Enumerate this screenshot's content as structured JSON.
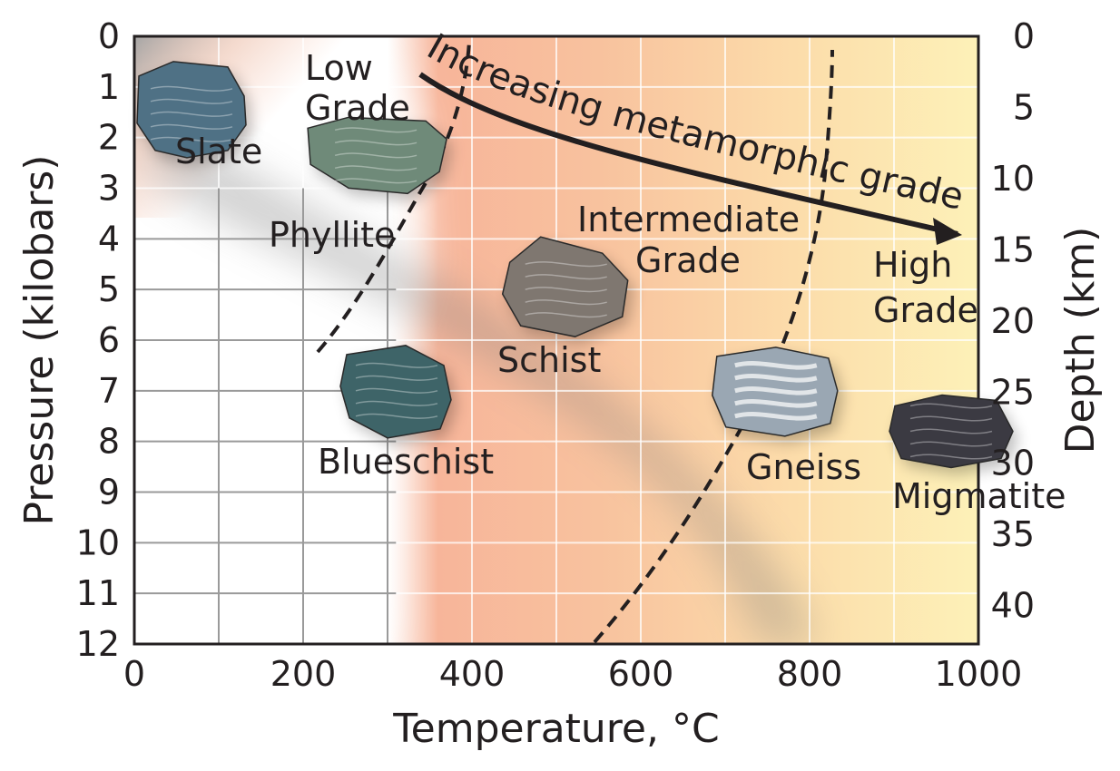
{
  "axes": {
    "x_title": "Temperature, °C",
    "y_left_title": "Pressure (kilobars)",
    "y_right_title": "Depth (km)",
    "x_ticks": [
      "0",
      "200",
      "400",
      "600",
      "800",
      "1000"
    ],
    "y_left_ticks": [
      "0",
      "1",
      "2",
      "3",
      "4",
      "5",
      "6",
      "7",
      "8",
      "9",
      "10",
      "11",
      "12"
    ],
    "y_right_ticks": [
      "0",
      "5",
      "10",
      "15",
      "20",
      "25",
      "30",
      "35",
      "40"
    ]
  },
  "grades": {
    "low_line1": "Low",
    "low_line2": "Grade",
    "intermediate_line1": "Intermediate",
    "intermediate_line2": "Grade",
    "high_line1": "High",
    "high_line2": "Grade"
  },
  "arrow_label": "Increasing metamorphic grade",
  "rocks": [
    {
      "name": "Slate",
      "temperature_c": 100,
      "pressure_kbar": 1,
      "color": "#4f7185"
    },
    {
      "name": "Phyllite",
      "temperature_c": 270,
      "pressure_kbar": 2.8,
      "color": "#6f8a79"
    },
    {
      "name": "Blueschist",
      "temperature_c": 300,
      "pressure_kbar": 7,
      "color": "#3e6468"
    },
    {
      "name": "Schist",
      "temperature_c": 490,
      "pressure_kbar": 5,
      "color": "#7f7770"
    },
    {
      "name": "Gneiss",
      "temperature_c": 760,
      "pressure_kbar": 7,
      "color": "#9aa7b3"
    },
    {
      "name": "Migmatite",
      "temperature_c": 1000,
      "pressure_kbar": 7.8,
      "color": "#3b3a42"
    }
  ],
  "colors": {
    "low": "#c8c8c8",
    "intermediate": "#f4a98a",
    "high": "#fdf1b4",
    "shadow": "#7a7a7a",
    "line": "#231f20"
  }
}
